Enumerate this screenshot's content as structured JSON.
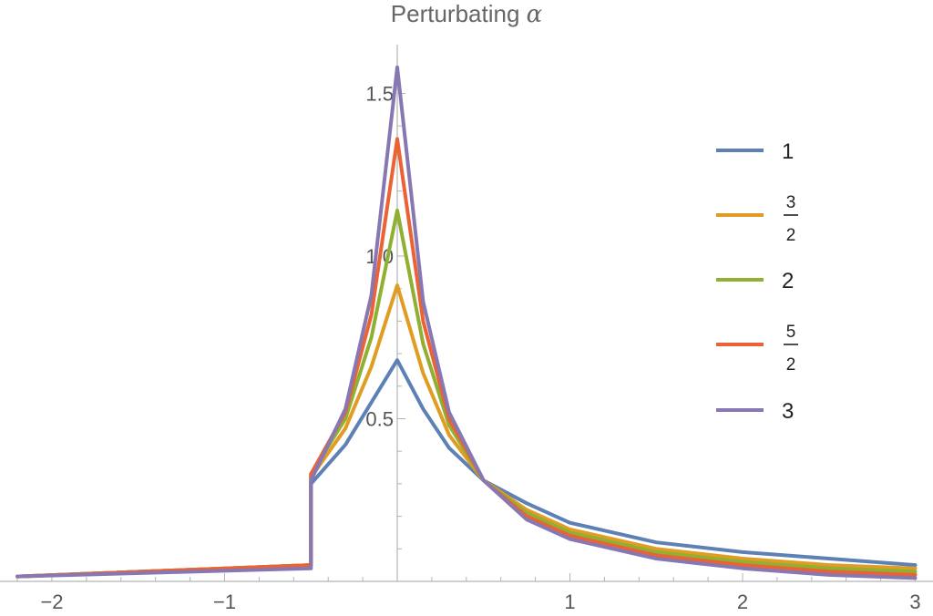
{
  "chart_data": {
    "type": "line",
    "title": "Perturbating ",
    "title_symbol": "α",
    "xlabel": "",
    "ylabel": "",
    "xlim": [
      -2.2,
      3.05
    ],
    "ylim": [
      0.0,
      1.65
    ],
    "x_ticks": [
      {
        "value": -2,
        "label": "−2"
      },
      {
        "value": -1,
        "label": "−1"
      },
      {
        "value": 1,
        "label": "1"
      },
      {
        "value": 2,
        "label": "2"
      },
      {
        "value": 3,
        "label": "3"
      }
    ],
    "y_ticks": [
      {
        "value": 0.5,
        "label": "0.5"
      },
      {
        "value": 1.0,
        "label": "1.0"
      },
      {
        "value": 1.5,
        "label": "1.5"
      }
    ],
    "grid": false,
    "legend_position": "right",
    "breakpoint_x": -0.5,
    "series": [
      {
        "name": "1",
        "color": "#5E81B5",
        "x": [
          -2.2,
          -0.5,
          -0.5,
          -0.3,
          -0.15,
          0,
          0.15,
          0.3,
          0.5,
          0.75,
          1.0,
          1.5,
          2.0,
          2.5,
          3.0
        ],
        "y": [
          0.015,
          0.05,
          0.3,
          0.42,
          0.55,
          0.68,
          0.53,
          0.41,
          0.31,
          0.24,
          0.18,
          0.12,
          0.09,
          0.07,
          0.05
        ]
      },
      {
        "name": "3/2",
        "label_num": "3",
        "label_den": "2",
        "color": "#E19C24",
        "x": [
          -2.2,
          -0.5,
          -0.5,
          -0.3,
          -0.15,
          0,
          0.15,
          0.3,
          0.5,
          0.75,
          1.0,
          1.5,
          2.0,
          2.5,
          3.0
        ],
        "y": [
          0.015,
          0.05,
          0.32,
          0.47,
          0.66,
          0.91,
          0.64,
          0.45,
          0.31,
          0.22,
          0.16,
          0.1,
          0.07,
          0.05,
          0.04
        ]
      },
      {
        "name": "2",
        "color": "#8FB032",
        "x": [
          -2.2,
          -0.5,
          -0.5,
          -0.3,
          -0.15,
          0,
          0.15,
          0.3,
          0.5,
          0.75,
          1.0,
          1.5,
          2.0,
          2.5,
          3.0
        ],
        "y": [
          0.015,
          0.05,
          0.33,
          0.5,
          0.75,
          1.14,
          0.73,
          0.48,
          0.31,
          0.21,
          0.15,
          0.09,
          0.06,
          0.04,
          0.03
        ]
      },
      {
        "name": "5/2",
        "label_num": "5",
        "label_den": "2",
        "color": "#EB6235",
        "x": [
          -2.2,
          -0.5,
          -0.5,
          -0.3,
          -0.15,
          0,
          0.15,
          0.3,
          0.5,
          0.75,
          1.0,
          1.5,
          2.0,
          2.5,
          3.0
        ],
        "y": [
          0.015,
          0.05,
          0.33,
          0.52,
          0.82,
          1.36,
          0.8,
          0.5,
          0.31,
          0.2,
          0.14,
          0.08,
          0.05,
          0.03,
          0.02
        ]
      },
      {
        "name": "3",
        "color": "#8778B3",
        "x": [
          -2.2,
          -0.5,
          -0.5,
          -0.3,
          -0.15,
          0,
          0.15,
          0.3,
          0.5,
          0.75,
          1.0,
          1.5,
          2.0,
          2.5,
          3.0
        ],
        "y": [
          0.015,
          0.04,
          0.31,
          0.53,
          0.88,
          1.58,
          0.86,
          0.52,
          0.31,
          0.19,
          0.13,
          0.07,
          0.04,
          0.02,
          0.01
        ]
      }
    ]
  }
}
